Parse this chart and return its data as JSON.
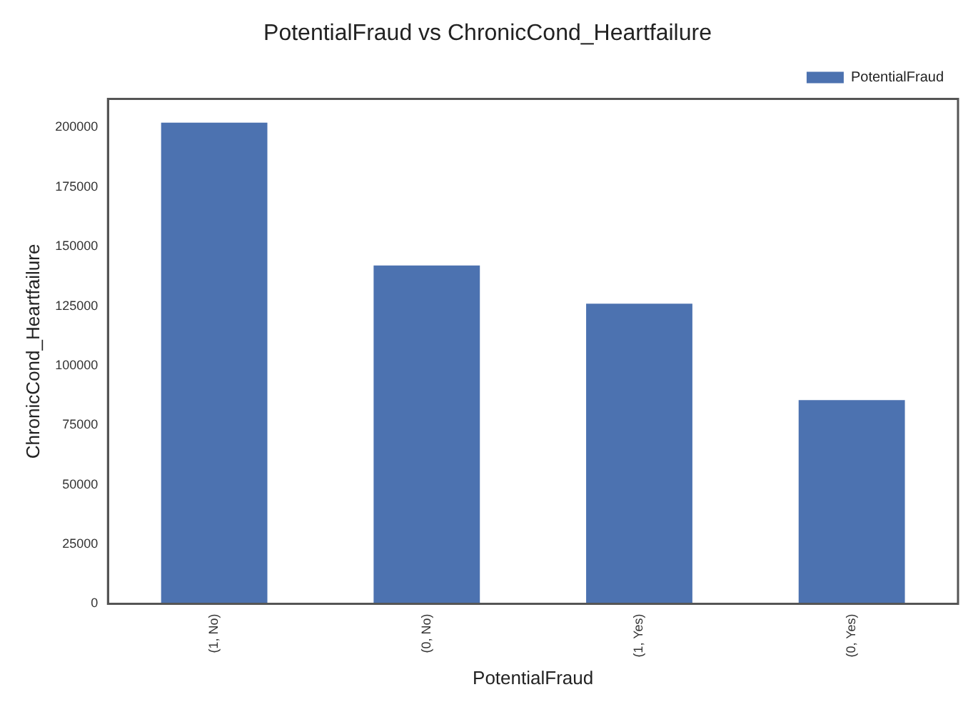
{
  "chart_data": {
    "type": "bar",
    "title": "PotentialFraud vs ChronicCond_Heartfailure",
    "xlabel": "PotentialFraud",
    "ylabel": "ChronicCond_Heartfailure",
    "categories": [
      "(1, No)",
      "(0, No)",
      "(1, Yes)",
      "(0, Yes)"
    ],
    "series": [
      {
        "name": "PotentialFraud",
        "color": "#4c72b0",
        "values": [
          202000,
          142000,
          126000,
          85500
        ]
      }
    ],
    "ylim": [
      0,
      212000
    ],
    "yticks": [
      0,
      25000,
      50000,
      75000,
      100000,
      125000,
      150000,
      175000,
      200000
    ],
    "grid": false,
    "legend": "top right"
  }
}
